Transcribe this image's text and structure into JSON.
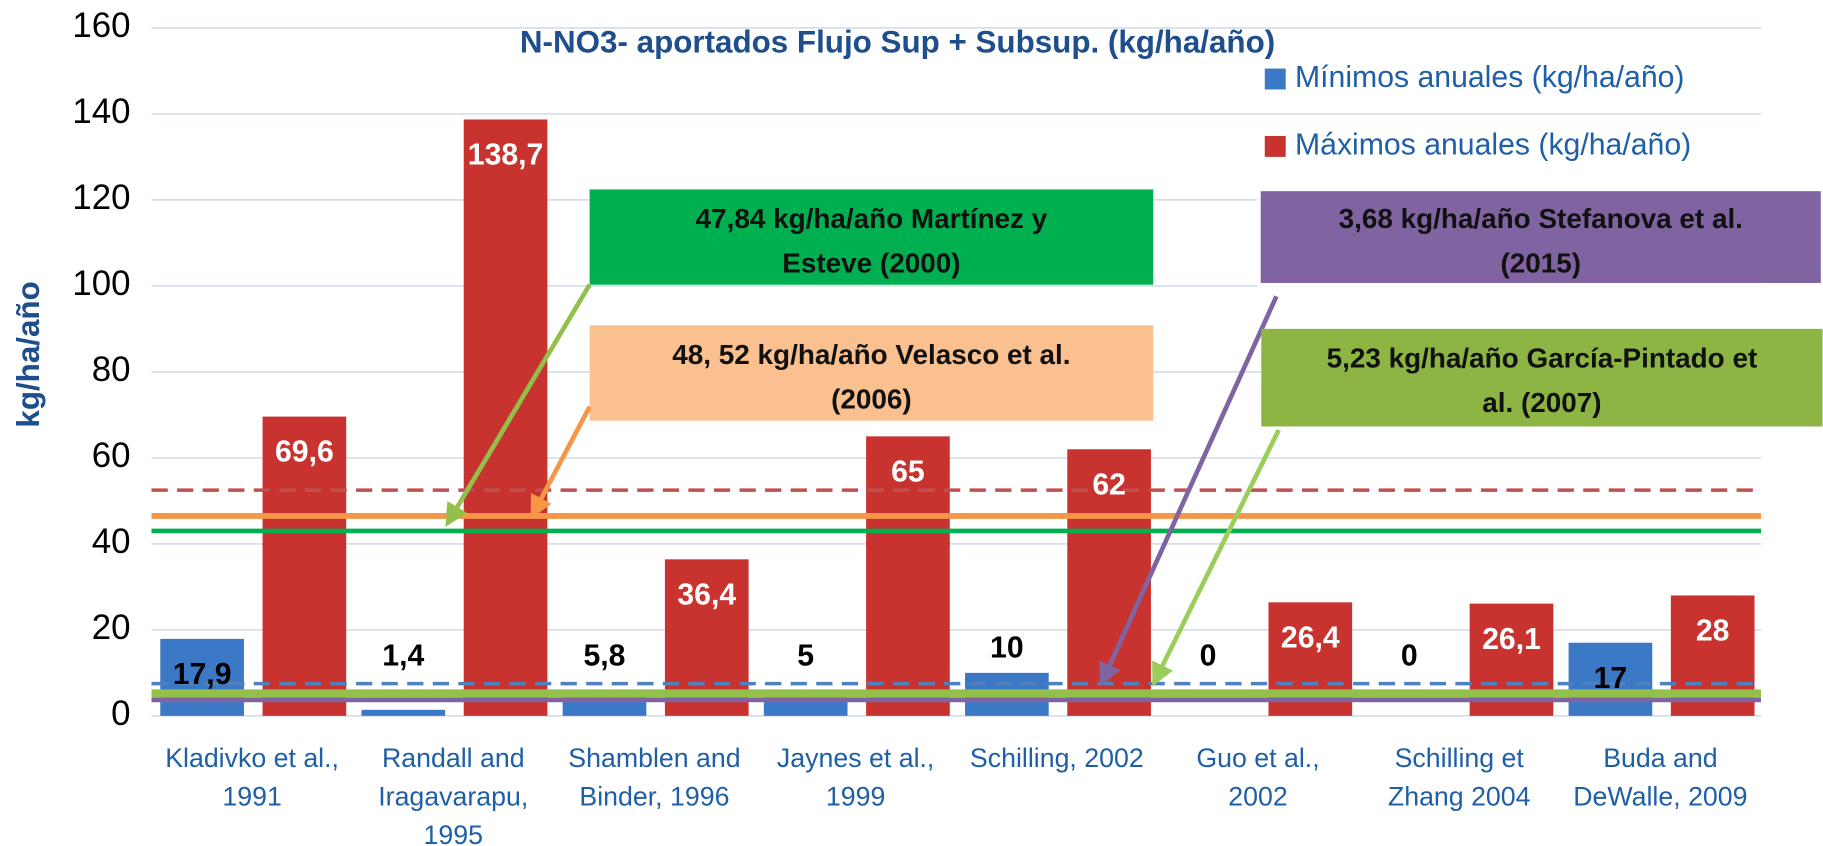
{
  "chart_data": {
    "type": "bar",
    "title": "N-NO3- aportados Flujo Sup + Subsup. (kg/ha/año)",
    "y_label": "kg/ha/año",
    "categories": [
      [
        "Kladivko et al.,",
        "1991"
      ],
      [
        "Randall and",
        "Iragavarapu,",
        "1995"
      ],
      [
        "Shamblen and",
        "Binder, 1996"
      ],
      [
        "Jaynes et al.,",
        "1999"
      ],
      [
        "Schilling, 2002"
      ],
      [
        "Guo et al.,",
        "2002"
      ],
      [
        "Schilling et",
        "Zhang 2004"
      ],
      [
        "Buda and",
        "DeWalle, 2009"
      ]
    ],
    "series": [
      {
        "name": "Mínimos anuales (kg/ha/año)",
        "color": "#3b78c6",
        "values": [
          17.9,
          1.4,
          5.8,
          5,
          10,
          0,
          0,
          17
        ],
        "value_labels": [
          "17,9",
          "1,4",
          "5,8",
          "5",
          "10",
          "0",
          "0",
          "17"
        ]
      },
      {
        "name": "Máximos anuales (kg/ha/año)",
        "color": "#c8322f",
        "values": [
          69.6,
          138.7,
          36.4,
          65,
          62,
          26.4,
          26.1,
          28
        ],
        "value_labels": [
          "69,6",
          "138,7",
          "36,4",
          "65",
          "62",
          "26,4",
          "26,1",
          "28"
        ]
      }
    ],
    "ylim": [
      0,
      160
    ],
    "yticks": [
      0,
      20,
      40,
      60,
      80,
      100,
      120,
      140,
      160
    ],
    "grid": true,
    "legend": "top-right",
    "reference_lines": [
      {
        "value": 52.5,
        "color": "#c0504d",
        "style": "dashed"
      },
      {
        "value": 46.5,
        "color": "#f79646",
        "style": "solid"
      },
      {
        "value": 43,
        "color": "#00b050",
        "style": "solid"
      },
      {
        "value": 7.5,
        "color": "#4f81bd",
        "style": "dashed"
      },
      {
        "value": 5.2,
        "color": "#92c04a",
        "style": "solid"
      },
      {
        "value": 3.7,
        "color": "#8064a2",
        "style": "solid"
      }
    ],
    "annotations": [
      {
        "lines": [
          "47,84  kg/ha/año Martínez y",
          "Esteve (2000)"
        ],
        "color": "#00b050"
      },
      {
        "lines": [
          "48, 52 kg/ha/año Velasco et al.",
          "(2006)"
        ],
        "color": "#fac090"
      },
      {
        "lines": [
          "3,68  kg/ha/año Stefanova et al.",
          "(2015)"
        ],
        "color": "#8064a2"
      },
      {
        "lines": [
          "5,23  kg/ha/año García-Pintado et",
          "al. (2007)"
        ],
        "color": "#8db543"
      }
    ]
  }
}
